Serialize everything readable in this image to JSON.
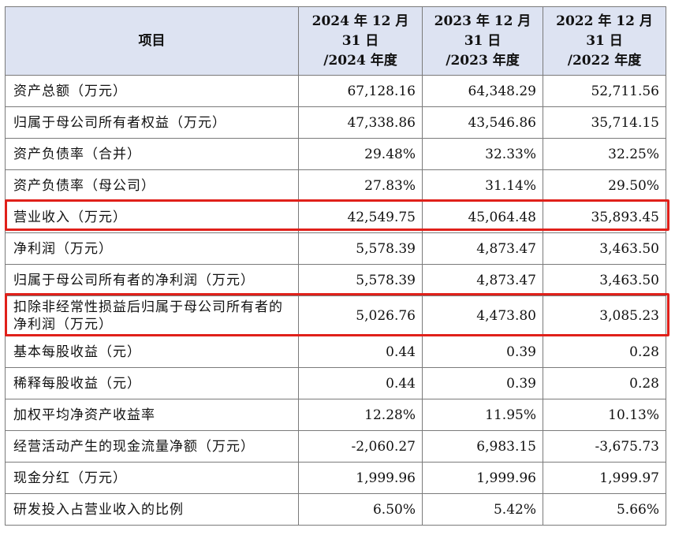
{
  "header": {
    "item": "项目",
    "col_2024": [
      "2024 年 12 月",
      "31 日",
      "/2024 年度"
    ],
    "col_2023": [
      "2023 年 12 月",
      "31 日",
      "/2023 年度"
    ],
    "col_2022": [
      "2022 年 12 月",
      "31 日",
      "/2022 年度"
    ]
  },
  "rows": [
    {
      "label": "资产总额（万元）",
      "v2024": "67,128.16",
      "v2023": "64,348.29",
      "v2022": "52,711.56"
    },
    {
      "label": "归属于母公司所有者权益（万元）",
      "v2024": "47,338.86",
      "v2023": "43,546.86",
      "v2022": "35,714.15"
    },
    {
      "label": "资产负债率（合并）",
      "v2024": "29.48%",
      "v2023": "32.33%",
      "v2022": "32.25%"
    },
    {
      "label": "资产负债率（母公司）",
      "v2024": "27.83%",
      "v2023": "31.14%",
      "v2022": "29.50%"
    },
    {
      "label": "营业收入（万元）",
      "v2024": "42,549.75",
      "v2023": "45,064.48",
      "v2022": "35,893.45"
    },
    {
      "label": "净利润（万元）",
      "v2024": "5,578.39",
      "v2023": "4,873.47",
      "v2022": "3,463.50"
    },
    {
      "label": "归属于母公司所有者的净利润（万元）",
      "v2024": "5,578.39",
      "v2023": "4,873.47",
      "v2022": "3,463.50"
    },
    {
      "label": "扣除非经常性损益后归属于母公司所有者的净利润（万元）",
      "v2024": "5,026.76",
      "v2023": "4,473.80",
      "v2022": "3,085.23"
    },
    {
      "label": "基本每股收益（元）",
      "v2024": "0.44",
      "v2023": "0.39",
      "v2022": "0.28"
    },
    {
      "label": "稀释每股收益（元）",
      "v2024": "0.44",
      "v2023": "0.39",
      "v2022": "0.28"
    },
    {
      "label": "加权平均净资产收益率",
      "v2024": "12.28%",
      "v2023": "11.95%",
      "v2022": "10.13%"
    },
    {
      "label": "经营活动产生的现金流量净额（万元）",
      "v2024": "-2,060.27",
      "v2023": "6,983.15",
      "v2022": "-3,675.73"
    },
    {
      "label": "现金分红（万元）",
      "v2024": "1,999.96",
      "v2023": "1,999.96",
      "v2022": "1,999.97"
    },
    {
      "label": "研发投入占营业收入的比例",
      "v2024": "6.50%",
      "v2023": "5.42%",
      "v2022": "5.66%"
    }
  ],
  "highlight_color": "#e0201a",
  "header_bg": "#dde3f2"
}
